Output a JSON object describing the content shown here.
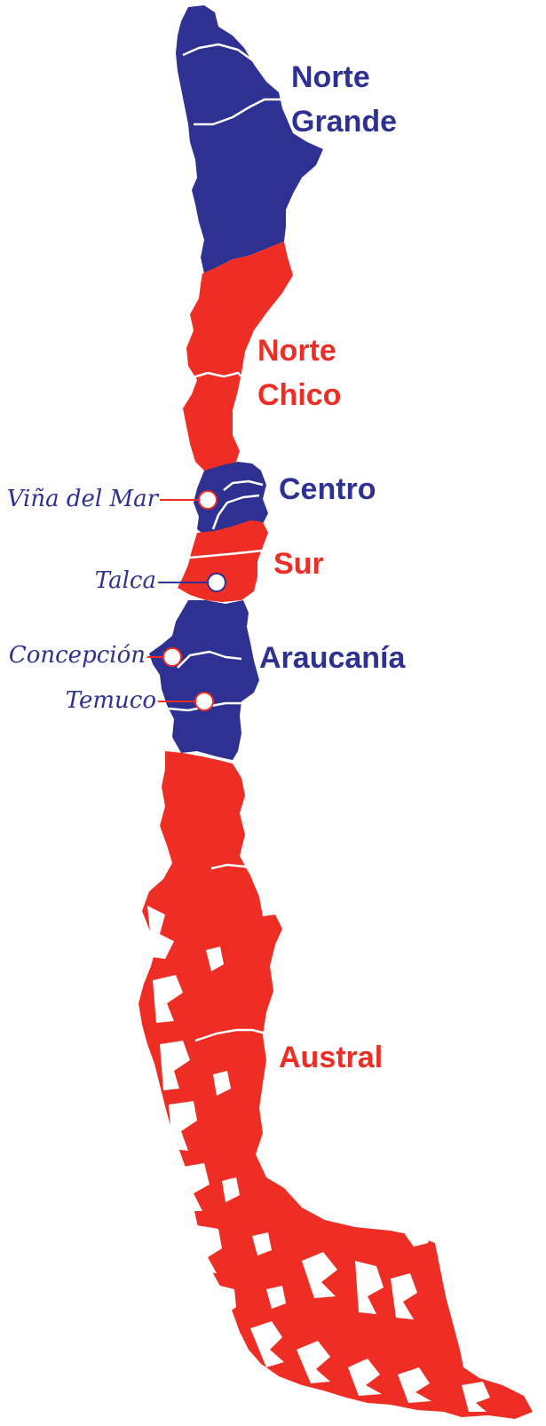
{
  "colors": {
    "blue": "#2e3192",
    "red": "#ee2e24",
    "white": "#ffffff"
  },
  "regions": {
    "norte_grande": {
      "line1": "Norte",
      "line2": "Grande",
      "color": "blue"
    },
    "norte_chico": {
      "line1": "Norte",
      "line2": "Chico",
      "color": "red"
    },
    "centro": {
      "label": "Centro",
      "color": "blue"
    },
    "sur": {
      "label": "Sur",
      "color": "red"
    },
    "araucania": {
      "label": "Araucanía",
      "color": "blue"
    },
    "austral": {
      "label": "Austral",
      "color": "red"
    }
  },
  "cities": {
    "vina_del_mar": "Viña del Mar",
    "talca": "Talca",
    "concepcion": "Concepción",
    "temuco": "Temuco"
  }
}
